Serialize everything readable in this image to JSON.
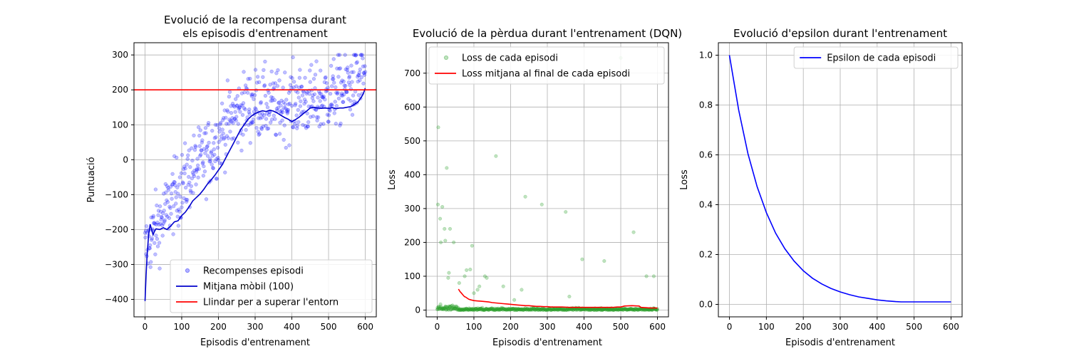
{
  "chart_data": [
    {
      "type": "scatter",
      "title_lines": [
        "Evolució de la recompensa durant",
        "els episodis d'entrenament"
      ],
      "xlabel": "Episodis d'entrenament",
      "ylabel": "Puntuació",
      "xlim": [
        -30,
        630
      ],
      "ylim": [
        -450,
        335
      ],
      "xticks": [
        0,
        100,
        200,
        300,
        400,
        500,
        600
      ],
      "yticks": [
        -400,
        -300,
        -200,
        -100,
        0,
        100,
        200,
        300
      ],
      "grid": true,
      "legend_position": "lower-right",
      "series": [
        {
          "name": "Recompenses episodi",
          "kind": "scatter",
          "color": "#0000ff",
          "trend": [
            [
              0,
              -260
            ],
            [
              25,
              -205
            ],
            [
              50,
              -165
            ],
            [
              75,
              -110
            ],
            [
              100,
              -75
            ],
            [
              125,
              -35
            ],
            [
              150,
              -5
            ],
            [
              175,
              20
            ],
            [
              200,
              60
            ],
            [
              225,
              105
            ],
            [
              250,
              130
            ],
            [
              275,
              150
            ],
            [
              300,
              160
            ],
            [
              325,
              160
            ],
            [
              350,
              150
            ],
            [
              375,
              155
            ],
            [
              400,
              165
            ],
            [
              425,
              170
            ],
            [
              450,
              165
            ],
            [
              475,
              170
            ],
            [
              500,
              185
            ],
            [
              525,
              195
            ],
            [
              550,
              210
            ],
            [
              575,
              225
            ],
            [
              600,
              250
            ]
          ],
          "spread": 95
        },
        {
          "name": "Mitjana mòbil (100)",
          "kind": "line",
          "color": "#0000cc",
          "points": [
            [
              0,
              -405
            ],
            [
              3,
              -330
            ],
            [
              6,
              -270
            ],
            [
              10,
              -215
            ],
            [
              14,
              -185
            ],
            [
              18,
              -200
            ],
            [
              22,
              -215
            ],
            [
              26,
              -205
            ],
            [
              30,
              -198
            ],
            [
              40,
              -200
            ],
            [
              50,
              -195
            ],
            [
              60,
              -200
            ],
            [
              65,
              -195
            ],
            [
              70,
              -190
            ],
            [
              80,
              -178
            ],
            [
              90,
              -175
            ],
            [
              100,
              -160
            ],
            [
              110,
              -150
            ],
            [
              120,
              -135
            ],
            [
              130,
              -118
            ],
            [
              140,
              -108
            ],
            [
              150,
              -98
            ],
            [
              160,
              -85
            ],
            [
              170,
              -70
            ],
            [
              180,
              -58
            ],
            [
              190,
              -45
            ],
            [
              200,
              -30
            ],
            [
              210,
              -15
            ],
            [
              220,
              5
            ],
            [
              230,
              25
            ],
            [
              240,
              45
            ],
            [
              250,
              65
            ],
            [
              260,
              85
            ],
            [
              270,
              100
            ],
            [
              280,
              115
            ],
            [
              290,
              125
            ],
            [
              300,
              132
            ],
            [
              310,
              137
            ],
            [
              320,
              140
            ],
            [
              330,
              138
            ],
            [
              340,
              142
            ],
            [
              350,
              139
            ],
            [
              360,
              134
            ],
            [
              370,
              127
            ],
            [
              380,
              121
            ],
            [
              390,
              116
            ],
            [
              400,
              109
            ],
            [
              410,
              115
            ],
            [
              420,
              122
            ],
            [
              430,
              131
            ],
            [
              440,
              139
            ],
            [
              450,
              148
            ],
            [
              460,
              150
            ],
            [
              470,
              148
            ],
            [
              480,
              147
            ],
            [
              490,
              148
            ],
            [
              500,
              147
            ],
            [
              510,
              149
            ],
            [
              520,
              146
            ],
            [
              530,
              148
            ],
            [
              540,
              148
            ],
            [
              550,
              150
            ],
            [
              560,
              152
            ],
            [
              570,
              158
            ],
            [
              580,
              165
            ],
            [
              590,
              180
            ],
            [
              595,
              190
            ],
            [
              600,
              205
            ]
          ]
        },
        {
          "name": "Llindar per a superar l'entorn",
          "kind": "hline",
          "color": "#ff0000",
          "y": 200
        }
      ]
    },
    {
      "type": "scatter",
      "title": "Evolució de la pèrdua durant l'entrenament (DQN)",
      "xlabel": "Episodis d'entrenament",
      "ylabel": "Loss",
      "xlim": [
        -30,
        630
      ],
      "ylim": [
        -20,
        790
      ],
      "xticks": [
        0,
        100,
        200,
        300,
        400,
        500,
        600
      ],
      "yticks": [
        0,
        100,
        200,
        300,
        400,
        500,
        600,
        700
      ],
      "grid": true,
      "legend_position": "top-right",
      "series": [
        {
          "name": "Loss de cada episodi",
          "kind": "scatter",
          "color": "#2ca02c",
          "outliers": [
            [
              3,
              540
            ],
            [
              2,
              312
            ],
            [
              8,
              270
            ],
            [
              14,
              305
            ],
            [
              20,
              240
            ],
            [
              26,
              420
            ],
            [
              10,
              200
            ],
            [
              22,
              205
            ],
            [
              32,
              110
            ],
            [
              35,
              240
            ],
            [
              45,
              200
            ],
            [
              60,
              80
            ],
            [
              75,
              100
            ],
            [
              80,
              118
            ],
            [
              90,
              120
            ],
            [
              95,
              190
            ],
            [
              100,
              50
            ],
            [
              110,
              60
            ],
            [
              115,
              70
            ],
            [
              130,
              100
            ],
            [
              135,
              95
            ],
            [
              160,
              455
            ],
            [
              180,
              70
            ],
            [
              210,
              30
            ],
            [
              230,
              60
            ],
            [
              240,
              335
            ],
            [
              285,
              312
            ],
            [
              350,
              290
            ],
            [
              360,
              40
            ],
            [
              395,
              150
            ],
            [
              455,
              145
            ],
            [
              500,
              745
            ],
            [
              535,
              230
            ],
            [
              570,
              100
            ],
            [
              590,
              100
            ],
            [
              30,
              95
            ]
          ]
        },
        {
          "name": "Loss mitjana al final de cada episodi",
          "kind": "line",
          "color": "#ff0000",
          "points": [
            [
              58,
              62
            ],
            [
              62,
              55
            ],
            [
              66,
              50
            ],
            [
              70,
              45
            ],
            [
              74,
              40
            ],
            [
              78,
              38
            ],
            [
              82,
              35
            ],
            [
              86,
              32
            ],
            [
              92,
              30
            ],
            [
              100,
              28
            ],
            [
              110,
              27
            ],
            [
              120,
              26
            ],
            [
              130,
              25
            ],
            [
              140,
              24
            ],
            [
              150,
              22
            ],
            [
              160,
              21
            ],
            [
              170,
              20
            ],
            [
              180,
              19
            ],
            [
              190,
              18
            ],
            [
              200,
              17
            ],
            [
              210,
              16
            ],
            [
              220,
              15
            ],
            [
              230,
              14
            ],
            [
              240,
              13
            ],
            [
              250,
              13
            ],
            [
              260,
              12
            ],
            [
              270,
              11
            ],
            [
              280,
              11
            ],
            [
              290,
              10
            ],
            [
              300,
              10
            ],
            [
              310,
              9
            ],
            [
              320,
              9
            ],
            [
              340,
              9
            ],
            [
              360,
              8
            ],
            [
              380,
              8
            ],
            [
              400,
              8
            ],
            [
              420,
              8
            ],
            [
              440,
              8
            ],
            [
              460,
              8
            ],
            [
              480,
              8
            ],
            [
              490,
              9
            ],
            [
              500,
              9
            ],
            [
              510,
              12
            ],
            [
              530,
              13
            ],
            [
              550,
              12
            ],
            [
              555,
              8
            ],
            [
              570,
              7
            ],
            [
              580,
              6
            ],
            [
              590,
              6
            ],
            [
              600,
              6
            ]
          ]
        }
      ]
    },
    {
      "type": "line",
      "title": "Evolució d'epsilon durant l'entrenament",
      "xlabel": "Episodis d'entrenament",
      "ylabel": "Loss",
      "xlim": [
        -30,
        630
      ],
      "ylim": [
        -0.05,
        1.05
      ],
      "xticks": [
        0,
        100,
        200,
        300,
        400,
        500,
        600
      ],
      "yticks": [
        0.0,
        0.2,
        0.4,
        0.6,
        0.8,
        1.0
      ],
      "grid": true,
      "legend_position": "top-right",
      "series": [
        {
          "name": "Epsilon de cada episodi",
          "kind": "line",
          "color": "#0000ff",
          "points": [
            [
              0,
              1.0
            ],
            [
              25,
              0.78
            ],
            [
              50,
              0.605
            ],
            [
              75,
              0.472
            ],
            [
              100,
              0.368
            ],
            [
              125,
              0.286
            ],
            [
              150,
              0.223
            ],
            [
              175,
              0.174
            ],
            [
              200,
              0.135
            ],
            [
              225,
              0.105
            ],
            [
              250,
              0.082
            ],
            [
              275,
              0.064
            ],
            [
              300,
              0.05
            ],
            [
              325,
              0.039
            ],
            [
              350,
              0.03
            ],
            [
              375,
              0.024
            ],
            [
              400,
              0.018
            ],
            [
              425,
              0.014
            ],
            [
              450,
              0.011
            ],
            [
              465,
              0.01
            ],
            [
              500,
              0.01
            ],
            [
              550,
              0.01
            ],
            [
              600,
              0.01
            ]
          ]
        }
      ]
    }
  ]
}
